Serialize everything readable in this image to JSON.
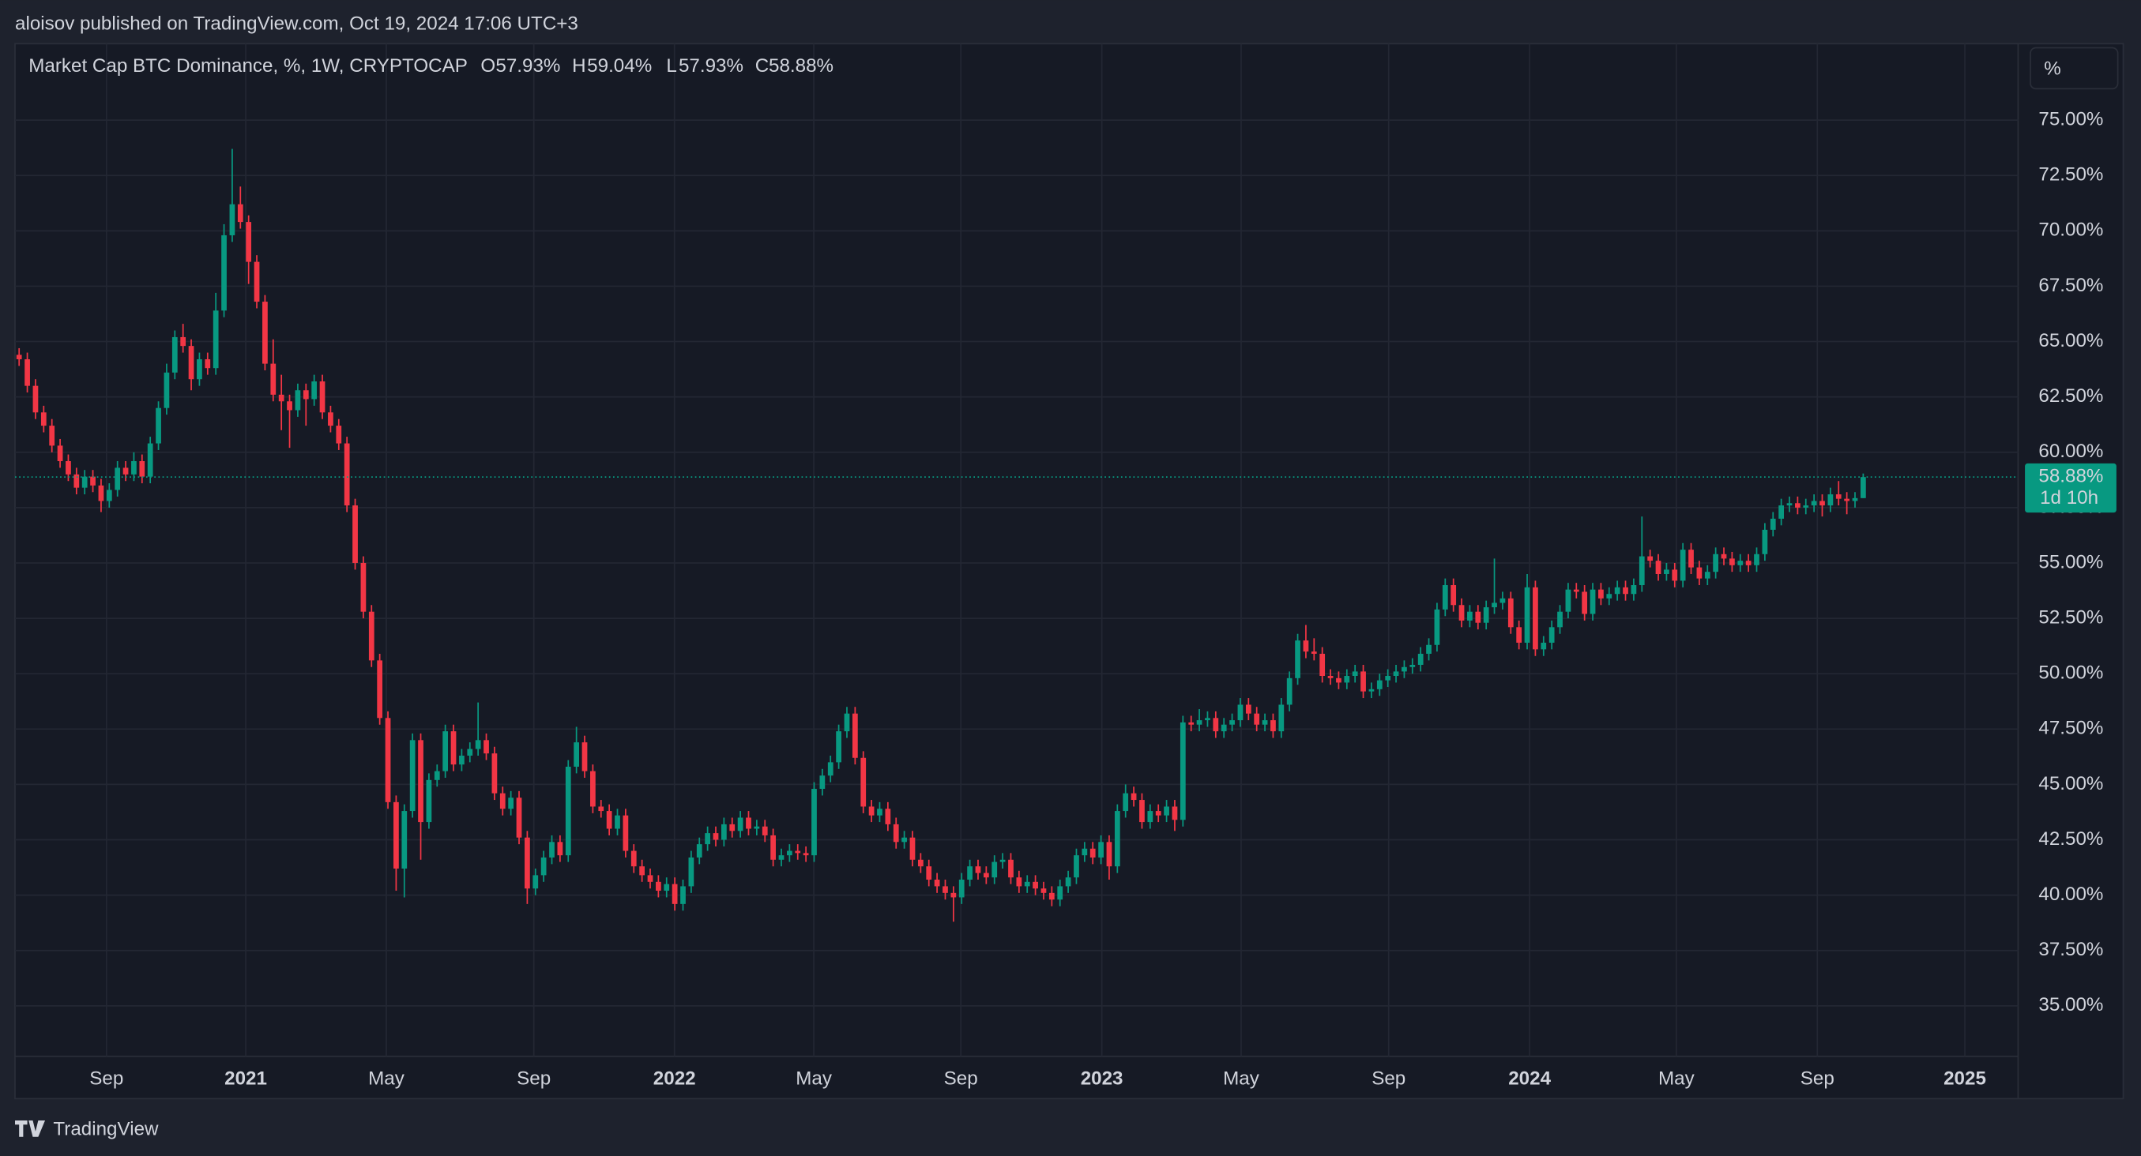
{
  "header": "aloisov published on TradingView.com, Oct 19, 2024 17:06 UTC+3",
  "footer_logo": "TradingView",
  "unit_button": "%",
  "chart_data": {
    "type": "candlestick",
    "title": "Market Cap BTC Dominance, %, 1W, CRYPTOCAP",
    "ohlc_legend": [
      {
        "key": "O",
        "value": 57.93,
        "label": "57.93%"
      },
      {
        "key": "H",
        "value": 59.04,
        "label": "59.04%"
      },
      {
        "key": "L",
        "value": 57.93,
        "label": "57.93%"
      },
      {
        "key": "C",
        "value": 58.88,
        "label": "58.88%"
      }
    ],
    "price_label": {
      "value": 58.88,
      "label": "58.88%"
    },
    "countdown": "1d 10h",
    "up_color": "#089981",
    "down_color": "#f23645",
    "grid": true,
    "xlim": [
      -0.5,
      243.9
    ],
    "xticks": [
      {
        "value": 10.66,
        "label": "Sep"
      },
      {
        "value": 27.65,
        "label": "2021"
      },
      {
        "value": 44.8,
        "label": "May"
      },
      {
        "value": 62.8,
        "label": "Sep"
      },
      {
        "value": 79.96,
        "label": "2022"
      },
      {
        "value": 96.96,
        "label": "May"
      },
      {
        "value": 114.9,
        "label": "Sep"
      },
      {
        "value": 132.1,
        "label": "2023"
      },
      {
        "value": 149.1,
        "label": "May"
      },
      {
        "value": 167.1,
        "label": "Sep"
      },
      {
        "value": 184.3,
        "label": "2024"
      },
      {
        "value": 202.2,
        "label": "May"
      },
      {
        "value": 219.4,
        "label": "Sep"
      },
      {
        "value": 237.4,
        "label": "2025"
      }
    ],
    "ylim": [
      30.81,
      78.45
    ],
    "yticks": [
      {
        "value": 35,
        "label": "35.00%"
      },
      {
        "value": 37.5,
        "label": "37.50%"
      },
      {
        "value": 40,
        "label": "40.00%"
      },
      {
        "value": 42.5,
        "label": "42.50%"
      },
      {
        "value": 45,
        "label": "45.00%"
      },
      {
        "value": 47.5,
        "label": "47.50%"
      },
      {
        "value": 50,
        "label": "50.00%"
      },
      {
        "value": 52.5,
        "label": "52.50%"
      },
      {
        "value": 55,
        "label": "55.00%"
      },
      {
        "value": 57.5,
        "label": "57.50%"
      },
      {
        "value": 60,
        "label": "60.00%"
      },
      {
        "value": 62.5,
        "label": "62.50%"
      },
      {
        "value": 65,
        "label": "65.00%"
      },
      {
        "value": 67.5,
        "label": "67.50%"
      },
      {
        "value": 70,
        "label": "70.00%"
      },
      {
        "value": 72.5,
        "label": "72.50%"
      },
      {
        "value": 75,
        "label": "75.00%"
      }
    ],
    "ohlc": [
      [
        64.4,
        64.7,
        63.9,
        64.2
      ],
      [
        64.2,
        64.5,
        62.7,
        63.0
      ],
      [
        63.0,
        63.3,
        61.5,
        61.8
      ],
      [
        61.8,
        62.1,
        60.9,
        61.2
      ],
      [
        61.2,
        61.5,
        60.0,
        60.3
      ],
      [
        60.3,
        60.6,
        59.3,
        59.6
      ],
      [
        59.6,
        59.9,
        58.7,
        59.0
      ],
      [
        59.0,
        59.3,
        58.1,
        58.4
      ],
      [
        58.4,
        59.2,
        58.1,
        58.9
      ],
      [
        58.9,
        59.2,
        58.2,
        58.5
      ],
      [
        58.5,
        58.8,
        57.3,
        57.8
      ],
      [
        57.8,
        58.6,
        57.5,
        58.3
      ],
      [
        58.3,
        59.6,
        58.0,
        59.3
      ],
      [
        59.3,
        59.6,
        58.7,
        59.0
      ],
      [
        59.0,
        60.0,
        58.7,
        59.6
      ],
      [
        59.6,
        59.9,
        58.6,
        58.9
      ],
      [
        58.9,
        60.7,
        58.6,
        60.4
      ],
      [
        60.4,
        62.3,
        60.1,
        62.0
      ],
      [
        62.0,
        64.0,
        61.7,
        63.6
      ],
      [
        63.6,
        65.5,
        63.3,
        65.2
      ],
      [
        65.2,
        65.8,
        64.5,
        64.8
      ],
      [
        64.8,
        65.1,
        62.8,
        63.3
      ],
      [
        63.3,
        64.5,
        63.0,
        64.2
      ],
      [
        64.2,
        64.5,
        63.5,
        63.8
      ],
      [
        63.8,
        67.2,
        63.5,
        66.4
      ],
      [
        66.4,
        70.3,
        66.1,
        69.8
      ],
      [
        69.8,
        73.7,
        69.5,
        71.2
      ],
      [
        71.2,
        72.0,
        70.1,
        70.4
      ],
      [
        70.4,
        70.7,
        67.6,
        68.6
      ],
      [
        68.6,
        68.9,
        66.5,
        66.8
      ],
      [
        66.8,
        67.1,
        63.7,
        64.0
      ],
      [
        64.0,
        65.1,
        62.3,
        62.6
      ],
      [
        62.6,
        63.5,
        61.0,
        62.3
      ],
      [
        62.3,
        62.6,
        60.2,
        61.9
      ],
      [
        61.9,
        63.1,
        61.6,
        62.8
      ],
      [
        62.8,
        63.1,
        61.2,
        62.4
      ],
      [
        62.4,
        63.5,
        62.1,
        63.2
      ],
      [
        63.2,
        63.5,
        61.5,
        61.8
      ],
      [
        61.8,
        62.1,
        60.9,
        61.2
      ],
      [
        61.2,
        61.5,
        60.1,
        60.4
      ],
      [
        60.4,
        60.7,
        57.3,
        57.6
      ],
      [
        57.6,
        57.9,
        54.7,
        55.0
      ],
      [
        55.0,
        55.3,
        52.5,
        52.8
      ],
      [
        52.8,
        53.1,
        50.3,
        50.6
      ],
      [
        50.6,
        50.9,
        47.7,
        48.0
      ],
      [
        48.0,
        48.3,
        43.9,
        44.2
      ],
      [
        44.2,
        44.5,
        40.2,
        41.2
      ],
      [
        41.2,
        44.1,
        39.9,
        43.8
      ],
      [
        43.8,
        47.3,
        43.5,
        47.0
      ],
      [
        47.0,
        47.3,
        41.6,
        43.3
      ],
      [
        43.3,
        45.5,
        43.0,
        45.2
      ],
      [
        45.2,
        45.9,
        44.9,
        45.6
      ],
      [
        45.6,
        47.7,
        45.3,
        47.4
      ],
      [
        47.4,
        47.7,
        45.6,
        45.9
      ],
      [
        45.9,
        46.6,
        45.6,
        46.3
      ],
      [
        46.3,
        46.9,
        46.0,
        46.6
      ],
      [
        46.6,
        48.7,
        46.3,
        47.0
      ],
      [
        47.0,
        47.3,
        46.1,
        46.4
      ],
      [
        46.4,
        46.7,
        44.3,
        44.6
      ],
      [
        44.6,
        44.9,
        43.6,
        43.9
      ],
      [
        43.9,
        44.7,
        43.6,
        44.4
      ],
      [
        44.4,
        44.7,
        42.3,
        42.6
      ],
      [
        42.6,
        42.9,
        39.6,
        40.3
      ],
      [
        40.3,
        41.2,
        40.0,
        40.9
      ],
      [
        40.9,
        42.0,
        40.6,
        41.7
      ],
      [
        41.7,
        42.7,
        41.4,
        42.4
      ],
      [
        42.4,
        42.7,
        41.5,
        41.8
      ],
      [
        41.8,
        46.1,
        41.5,
        45.8
      ],
      [
        45.8,
        47.6,
        45.5,
        46.9
      ],
      [
        46.9,
        47.2,
        45.3,
        45.6
      ],
      [
        45.6,
        45.9,
        43.7,
        44.0
      ],
      [
        44.0,
        44.3,
        43.5,
        43.8
      ],
      [
        43.8,
        44.1,
        42.7,
        43.0
      ],
      [
        43.0,
        43.9,
        42.7,
        43.6
      ],
      [
        43.6,
        43.9,
        41.7,
        42.0
      ],
      [
        42.0,
        42.3,
        41.0,
        41.3
      ],
      [
        41.3,
        41.6,
        40.6,
        40.9
      ],
      [
        40.9,
        41.2,
        40.3,
        40.6
      ],
      [
        40.6,
        40.9,
        39.9,
        40.2
      ],
      [
        40.2,
        40.8,
        39.9,
        40.5
      ],
      [
        40.5,
        40.8,
        39.3,
        39.6
      ],
      [
        39.6,
        40.7,
        39.3,
        40.4
      ],
      [
        40.4,
        42.0,
        40.1,
        41.7
      ],
      [
        41.7,
        42.6,
        41.4,
        42.3
      ],
      [
        42.3,
        43.1,
        42.0,
        42.8
      ],
      [
        42.8,
        43.1,
        42.2,
        42.5
      ],
      [
        42.5,
        43.5,
        42.2,
        43.2
      ],
      [
        43.2,
        43.5,
        42.6,
        42.9
      ],
      [
        42.9,
        43.8,
        42.6,
        43.5
      ],
      [
        43.5,
        43.8,
        42.7,
        43.0
      ],
      [
        43.0,
        43.4,
        42.7,
        43.1
      ],
      [
        43.1,
        43.4,
        42.4,
        42.7
      ],
      [
        42.7,
        43.0,
        41.3,
        41.6
      ],
      [
        41.6,
        42.1,
        41.3,
        41.8
      ],
      [
        41.8,
        42.3,
        41.5,
        42.0
      ],
      [
        42.0,
        42.3,
        41.6,
        41.9
      ],
      [
        41.9,
        42.2,
        41.5,
        41.8
      ],
      [
        41.8,
        45.1,
        41.5,
        44.8
      ],
      [
        44.8,
        45.7,
        44.5,
        45.4
      ],
      [
        45.4,
        46.3,
        45.1,
        46.0
      ],
      [
        46.0,
        47.7,
        45.7,
        47.4
      ],
      [
        47.4,
        48.5,
        47.1,
        48.2
      ],
      [
        48.2,
        48.5,
        45.9,
        46.2
      ],
      [
        46.2,
        46.5,
        43.7,
        44.0
      ],
      [
        44.0,
        44.3,
        43.3,
        43.6
      ],
      [
        43.6,
        44.2,
        43.3,
        43.9
      ],
      [
        43.9,
        44.2,
        42.9,
        43.2
      ],
      [
        43.2,
        43.5,
        42.1,
        42.4
      ],
      [
        42.4,
        42.9,
        42.1,
        42.6
      ],
      [
        42.6,
        42.9,
        41.3,
        41.6
      ],
      [
        41.6,
        41.9,
        41.0,
        41.3
      ],
      [
        41.3,
        41.6,
        40.4,
        40.7
      ],
      [
        40.7,
        41.0,
        40.1,
        40.4
      ],
      [
        40.4,
        40.7,
        39.8,
        40.1
      ],
      [
        40.1,
        40.4,
        38.8,
        39.9
      ],
      [
        39.9,
        41.0,
        39.6,
        40.7
      ],
      [
        40.7,
        41.6,
        40.4,
        41.3
      ],
      [
        41.3,
        41.6,
        40.7,
        41.0
      ],
      [
        41.0,
        41.3,
        40.5,
        40.8
      ],
      [
        40.8,
        41.8,
        40.5,
        41.5
      ],
      [
        41.5,
        41.9,
        41.2,
        41.6
      ],
      [
        41.6,
        41.9,
        40.5,
        40.8
      ],
      [
        40.8,
        41.1,
        40.1,
        40.4
      ],
      [
        40.4,
        40.9,
        40.1,
        40.6
      ],
      [
        40.6,
        40.9,
        40.0,
        40.3
      ],
      [
        40.3,
        40.6,
        39.8,
        40.1
      ],
      [
        40.1,
        40.4,
        39.5,
        39.8
      ],
      [
        39.8,
        40.7,
        39.5,
        40.4
      ],
      [
        40.4,
        41.1,
        40.1,
        40.8
      ],
      [
        40.8,
        42.1,
        40.5,
        41.8
      ],
      [
        41.8,
        42.4,
        41.5,
        42.1
      ],
      [
        42.1,
        42.4,
        41.4,
        41.7
      ],
      [
        41.7,
        42.7,
        41.4,
        42.4
      ],
      [
        42.4,
        42.7,
        40.7,
        41.3
      ],
      [
        41.3,
        44.1,
        41.0,
        43.8
      ],
      [
        43.8,
        45.0,
        43.5,
        44.6
      ],
      [
        44.6,
        44.9,
        44.0,
        44.3
      ],
      [
        44.3,
        44.6,
        43.0,
        43.3
      ],
      [
        43.3,
        44.1,
        43.0,
        43.8
      ],
      [
        43.8,
        44.1,
        43.3,
        43.6
      ],
      [
        43.6,
        44.3,
        43.3,
        44.0
      ],
      [
        44.0,
        44.3,
        42.9,
        43.4
      ],
      [
        43.4,
        48.1,
        43.1,
        47.8
      ],
      [
        47.8,
        48.1,
        47.4,
        47.7
      ],
      [
        47.7,
        48.4,
        47.4,
        47.9
      ],
      [
        47.9,
        48.3,
        47.6,
        48.0
      ],
      [
        48.0,
        48.3,
        47.1,
        47.4
      ],
      [
        47.4,
        48.0,
        47.1,
        47.7
      ],
      [
        47.7,
        48.2,
        47.4,
        47.9
      ],
      [
        47.9,
        48.9,
        47.6,
        48.6
      ],
      [
        48.6,
        48.9,
        47.9,
        48.2
      ],
      [
        48.2,
        48.5,
        47.4,
        47.7
      ],
      [
        47.7,
        48.2,
        47.4,
        47.9
      ],
      [
        47.9,
        48.2,
        47.1,
        47.4
      ],
      [
        47.4,
        48.9,
        47.1,
        48.6
      ],
      [
        48.6,
        50.1,
        48.3,
        49.8
      ],
      [
        49.8,
        51.8,
        49.5,
        51.5
      ],
      [
        51.5,
        52.2,
        50.7,
        51.0
      ],
      [
        51.0,
        51.6,
        50.6,
        50.9
      ],
      [
        50.9,
        51.2,
        49.6,
        49.9
      ],
      [
        49.9,
        50.2,
        49.5,
        49.8
      ],
      [
        49.8,
        50.1,
        49.3,
        49.6
      ],
      [
        49.6,
        50.2,
        49.3,
        49.9
      ],
      [
        49.9,
        50.4,
        49.6,
        50.1
      ],
      [
        50.1,
        50.4,
        48.9,
        49.2
      ],
      [
        49.2,
        49.6,
        48.9,
        49.3
      ],
      [
        49.3,
        50.0,
        49.0,
        49.7
      ],
      [
        49.7,
        50.2,
        49.4,
        49.9
      ],
      [
        49.9,
        50.4,
        49.6,
        50.1
      ],
      [
        50.1,
        50.6,
        49.8,
        50.3
      ],
      [
        50.3,
        50.7,
        50.0,
        50.4
      ],
      [
        50.4,
        51.2,
        50.1,
        50.9
      ],
      [
        50.9,
        51.6,
        50.6,
        51.3
      ],
      [
        51.3,
        53.2,
        51.0,
        52.9
      ],
      [
        52.9,
        54.3,
        52.6,
        54.0
      ],
      [
        54.0,
        54.3,
        52.8,
        53.1
      ],
      [
        53.1,
        53.4,
        52.1,
        52.4
      ],
      [
        52.4,
        53.1,
        52.1,
        52.8
      ],
      [
        52.8,
        53.1,
        52.0,
        52.3
      ],
      [
        52.3,
        53.3,
        52.0,
        53.0
      ],
      [
        53.0,
        55.2,
        52.7,
        53.2
      ],
      [
        53.2,
        53.7,
        52.9,
        53.4
      ],
      [
        53.4,
        53.7,
        51.8,
        52.1
      ],
      [
        52.1,
        52.4,
        51.1,
        51.4
      ],
      [
        51.4,
        54.5,
        51.1,
        53.9
      ],
      [
        53.9,
        54.2,
        50.8,
        51.1
      ],
      [
        51.1,
        51.7,
        50.8,
        51.4
      ],
      [
        51.4,
        52.4,
        51.1,
        52.1
      ],
      [
        52.1,
        53.1,
        51.8,
        52.8
      ],
      [
        52.8,
        54.1,
        52.5,
        53.8
      ],
      [
        53.8,
        54.1,
        53.4,
        53.7
      ],
      [
        53.7,
        54.0,
        52.4,
        52.7
      ],
      [
        52.7,
        54.1,
        52.4,
        53.8
      ],
      [
        53.8,
        54.1,
        53.1,
        53.4
      ],
      [
        53.4,
        53.9,
        53.1,
        53.6
      ],
      [
        53.6,
        54.2,
        53.3,
        53.9
      ],
      [
        53.9,
        54.2,
        53.3,
        53.6
      ],
      [
        53.6,
        54.3,
        53.3,
        54.0
      ],
      [
        54.0,
        57.1,
        53.7,
        55.3
      ],
      [
        55.3,
        55.6,
        54.8,
        55.1
      ],
      [
        55.1,
        55.4,
        54.2,
        54.5
      ],
      [
        54.5,
        55.0,
        54.2,
        54.7
      ],
      [
        54.7,
        55.0,
        53.9,
        54.2
      ],
      [
        54.2,
        55.9,
        53.9,
        55.6
      ],
      [
        55.6,
        55.9,
        54.5,
        54.8
      ],
      [
        54.8,
        55.1,
        54.0,
        54.3
      ],
      [
        54.3,
        54.9,
        54.0,
        54.6
      ],
      [
        54.6,
        55.7,
        54.3,
        55.4
      ],
      [
        55.4,
        55.7,
        54.9,
        55.2
      ],
      [
        55.2,
        55.5,
        54.6,
        54.9
      ],
      [
        54.9,
        55.4,
        54.6,
        55.1
      ],
      [
        55.1,
        55.4,
        54.6,
        54.9
      ],
      [
        54.9,
        55.7,
        54.6,
        55.4
      ],
      [
        55.4,
        56.8,
        55.1,
        56.5
      ],
      [
        56.5,
        57.3,
        56.2,
        57.0
      ],
      [
        57.0,
        57.9,
        56.7,
        57.6
      ],
      [
        57.6,
        58.0,
        57.3,
        57.7
      ],
      [
        57.7,
        58.0,
        57.2,
        57.5
      ],
      [
        57.5,
        57.9,
        57.2,
        57.6
      ],
      [
        57.6,
        58.1,
        57.3,
        57.8
      ],
      [
        57.8,
        58.1,
        57.1,
        57.6
      ],
      [
        57.6,
        58.4,
        57.3,
        58.1
      ],
      [
        58.1,
        58.7,
        57.6,
        57.9
      ],
      [
        57.9,
        58.2,
        57.2,
        57.8
      ],
      [
        57.8,
        58.2,
        57.5,
        57.93
      ],
      [
        57.93,
        59.04,
        57.93,
        58.88
      ]
    ]
  }
}
